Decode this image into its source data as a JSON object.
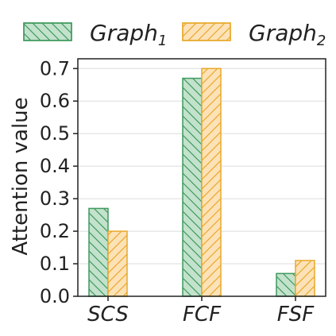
{
  "chart_data": {
    "type": "bar",
    "categories": [
      "SCS",
      "FCF",
      "FSF"
    ],
    "series": [
      {
        "name": "Graph",
        "subscript": "1",
        "values": [
          0.27,
          0.67,
          0.07
        ],
        "fill": "#c3e2cc",
        "stroke": "#3f9a5f",
        "hatch": "back-diagonal"
      },
      {
        "name": "Graph",
        "subscript": "2",
        "values": [
          0.2,
          0.7,
          0.11
        ],
        "fill": "#fde2b8",
        "stroke": "#e8a92c",
        "hatch": "forward-diagonal"
      }
    ],
    "title": "",
    "xlabel": "",
    "ylabel": "Attention value",
    "ylim": [
      0,
      0.73
    ],
    "yticks": [
      "0.0",
      "0.1",
      "0.2",
      "0.3",
      "0.4",
      "0.5",
      "0.6",
      "0.7"
    ],
    "grid": "horizontal",
    "legend": "top"
  }
}
